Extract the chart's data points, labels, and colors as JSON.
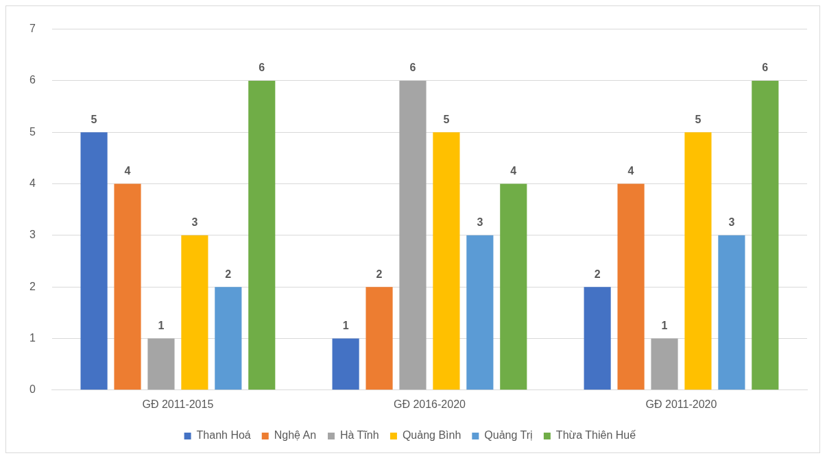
{
  "chart_data": {
    "type": "bar",
    "categories": [
      "GĐ 2011-2015",
      "GĐ 2016-2020",
      "GĐ 2011-2020"
    ],
    "series": [
      {
        "name": "Thanh Hoá",
        "color": "#4472c4",
        "values": [
          5,
          1,
          2
        ]
      },
      {
        "name": "Nghệ An",
        "color": "#ed7d31",
        "values": [
          4,
          2,
          4
        ]
      },
      {
        "name": "Hà Tĩnh",
        "color": "#a5a5a5",
        "values": [
          1,
          6,
          1
        ]
      },
      {
        "name": "Quảng Bình",
        "color": "#ffc000",
        "values": [
          3,
          5,
          5
        ]
      },
      {
        "name": "Quảng Trị",
        "color": "#5b9bd5",
        "values": [
          2,
          3,
          3
        ]
      },
      {
        "name": "Thừa Thiên Huế",
        "color": "#70ad47",
        "values": [
          6,
          4,
          6
        ]
      }
    ],
    "ylim": [
      0,
      7
    ],
    "yticks": [
      0,
      1,
      2,
      3,
      4,
      5,
      6,
      7
    ],
    "grid": "y",
    "legend": "bottom",
    "data_labels": true
  }
}
